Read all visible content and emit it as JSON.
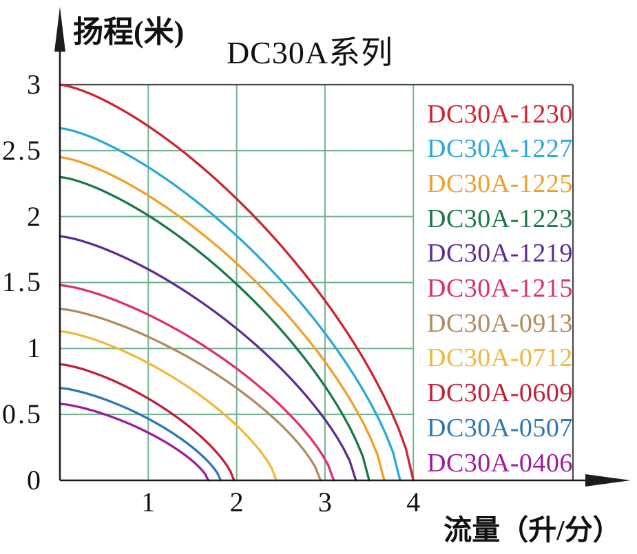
{
  "title": "DC30A系列",
  "y_axis_label": "扬程(米)",
  "x_axis_label": "流量（升/分）",
  "colors": {
    "grid": "#72b291",
    "frame": "#4a4a4a",
    "axis": "#1c1c1c",
    "text": "#111111",
    "background": "#ffffff"
  },
  "chart_data": {
    "type": "line",
    "title": "DC30A系列",
    "xlabel": "流量（升/分）",
    "ylabel": "扬程(米)",
    "xlim": [
      0,
      4
    ],
    "ylim": [
      0,
      3
    ],
    "x_tick_values": [
      1,
      2,
      3,
      4
    ],
    "x_tick_labels": [
      "1",
      "2",
      "3",
      "4"
    ],
    "y_tick_values": [
      0,
      0.5,
      1,
      1.5,
      2,
      2.5,
      3
    ],
    "y_tick_labels": [
      "0",
      "0.5",
      "1",
      "1.5",
      "2",
      "2.5",
      "3"
    ],
    "grid": true,
    "legend_position": "right-inside",
    "curve_model": "head = h0 * (1 - (q/qmax)^1.4)^(1/1.4)",
    "series": [
      {
        "name": "DC30A-1230",
        "color": "#d1222e",
        "h0": 3.0,
        "qmax": 4.0
      },
      {
        "name": "DC30A-1227",
        "color": "#2aa7db",
        "h0": 2.67,
        "qmax": 3.85
      },
      {
        "name": "DC30A-1225",
        "color": "#f19f27",
        "h0": 2.45,
        "qmax": 3.67
      },
      {
        "name": "DC30A-1223",
        "color": "#187848",
        "h0": 2.3,
        "qmax": 3.5
      },
      {
        "name": "DC30A-1219",
        "color": "#5e2c90",
        "h0": 1.85,
        "qmax": 3.35
      },
      {
        "name": "DC30A-1215",
        "color": "#df2e73",
        "h0": 1.48,
        "qmax": 3.1
      },
      {
        "name": "DC30A-0913",
        "color": "#b08c5c",
        "h0": 1.3,
        "qmax": 2.95
      },
      {
        "name": "DC30A-0712",
        "color": "#f0b83c",
        "h0": 1.13,
        "qmax": 2.45
      },
      {
        "name": "DC30A-0609",
        "color": "#c21f38",
        "h0": 0.88,
        "qmax": 1.97
      },
      {
        "name": "DC30A-0507",
        "color": "#2d77b4",
        "h0": 0.7,
        "qmax": 1.82
      },
      {
        "name": "DC30A-0406",
        "color": "#9c1a9e",
        "h0": 0.58,
        "qmax": 1.68
      }
    ],
    "measured_points": {
      "DC30A-1230": [
        [
          0,
          3.0
        ],
        [
          1,
          2.6
        ],
        [
          2,
          2.1
        ],
        [
          3,
          1.4
        ],
        [
          4,
          0
        ]
      ],
      "DC30A-1227": [
        [
          0,
          2.67
        ],
        [
          1,
          2.36
        ],
        [
          3,
          1.14
        ],
        [
          3.85,
          0
        ]
      ]
    }
  }
}
